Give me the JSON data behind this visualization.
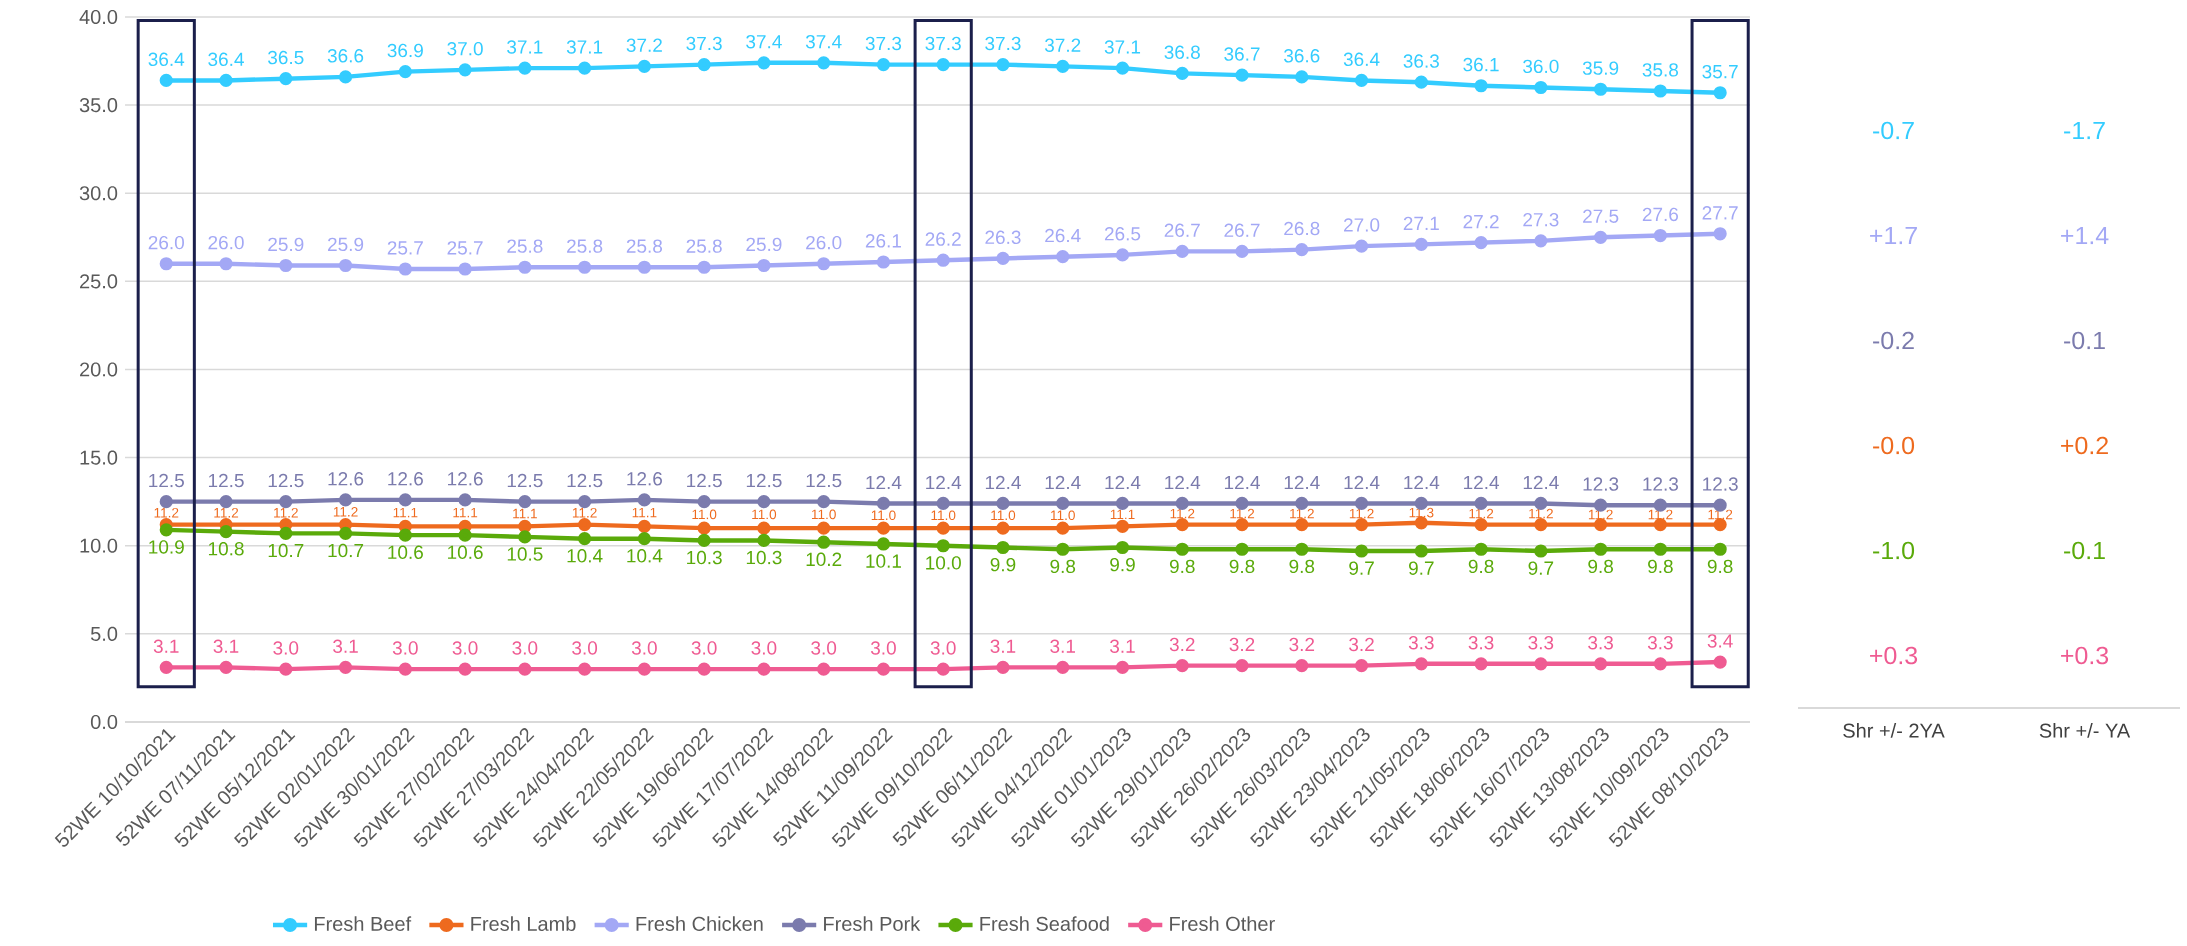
{
  "chart_data": [
    {
      "type": "line",
      "categories": [
        "52WE 10/10/2021",
        "52WE 07/11/2021",
        "52WE 05/12/2021",
        "52WE 02/01/2022",
        "52WE 30/01/2022",
        "52WE 27/02/2022",
        "52WE 27/03/2022",
        "52WE 24/04/2022",
        "52WE 22/05/2022",
        "52WE 19/06/2022",
        "52WE 17/07/2022",
        "52WE 14/08/2022",
        "52WE 11/09/2022",
        "52WE 09/10/2022",
        "52WE 06/11/2022",
        "52WE 04/12/2022",
        "52WE 01/01/2023",
        "52WE 29/01/2023",
        "52WE 26/02/2023",
        "52WE 26/03/2023",
        "52WE 23/04/2023",
        "52WE 21/05/2023",
        "52WE 18/06/2023",
        "52WE 16/07/2023",
        "52WE 13/08/2023",
        "52WE 10/09/2023",
        "52WE 08/10/2023"
      ],
      "series": [
        {
          "name": "Fresh Beef",
          "color": "#33ccff",
          "values": [
            36.4,
            36.4,
            36.5,
            36.6,
            36.9,
            37.0,
            37.1,
            37.1,
            37.2,
            37.3,
            37.4,
            37.4,
            37.3,
            37.3,
            37.3,
            37.2,
            37.1,
            36.8,
            36.7,
            36.6,
            36.4,
            36.3,
            36.1,
            36.0,
            35.9,
            35.8,
            35.7
          ],
          "value_labels": [
            "36.4",
            "36.4",
            "36.5",
            "36.6",
            "36.9",
            "37.0",
            "37.1",
            "37.1",
            "37.2",
            "37.3",
            "37.4",
            "37.4",
            "37.3",
            "37.3",
            "37.3",
            "37.2",
            "37.1",
            "36.8",
            "36.7",
            "36.6",
            "36.4",
            "36.3",
            "36.1",
            "36.0",
            "35.9",
            "35.8",
            "35.7"
          ]
        },
        {
          "name": "Fresh Lamb",
          "color": "#ee6a1e",
          "values": [
            11.2,
            11.2,
            11.2,
            11.2,
            11.1,
            11.1,
            11.1,
            11.2,
            11.1,
            11.0,
            11.0,
            11.0,
            11.0,
            11.0,
            11.0,
            11.0,
            11.1,
            11.2,
            11.2,
            11.2,
            11.2,
            11.3,
            11.2,
            11.2,
            11.2,
            11.2,
            11.2
          ],
          "value_labels": [
            "11.2",
            "11.2",
            "11.2",
            "11.2",
            "11.1",
            "11.1",
            "11.1",
            "11.2",
            "11.1",
            "11.0",
            "11.0",
            "11.0",
            "11.0",
            "11.0",
            "11.0",
            "11.0",
            "11.1",
            "11.2",
            "11.2",
            "11.2",
            "11.2",
            "11.3",
            "11.2",
            "11.2",
            "11.2",
            "11.2",
            "11.2"
          ]
        },
        {
          "name": "Fresh Chicken",
          "color": "#a3a8f5",
          "values": [
            26.0,
            26.0,
            25.9,
            25.9,
            25.7,
            25.7,
            25.8,
            25.8,
            25.8,
            25.8,
            25.9,
            26.0,
            26.1,
            26.2,
            26.3,
            26.4,
            26.5,
            26.7,
            26.7,
            26.8,
            27.0,
            27.1,
            27.2,
            27.3,
            27.5,
            27.6,
            27.7
          ],
          "value_labels": [
            "26.0",
            "26.0",
            "25.9",
            "25.9",
            "25.7",
            "25.7",
            "25.8",
            "25.8",
            "25.8",
            "25.8",
            "25.9",
            "26.0",
            "26.1",
            "26.2",
            "26.3",
            "26.4",
            "26.5",
            "26.7",
            "26.7",
            "26.8",
            "27.0",
            "27.1",
            "27.2",
            "27.3",
            "27.5",
            "27.6",
            "27.7"
          ]
        },
        {
          "name": "Fresh Pork",
          "color": "#7b7bad",
          "values": [
            12.5,
            12.5,
            12.5,
            12.6,
            12.6,
            12.6,
            12.5,
            12.5,
            12.6,
            12.5,
            12.5,
            12.5,
            12.4,
            12.4,
            12.4,
            12.4,
            12.4,
            12.4,
            12.4,
            12.4,
            12.4,
            12.4,
            12.4,
            12.4,
            12.3,
            12.3,
            12.3
          ],
          "value_labels": [
            "12.5",
            "12.5",
            "12.5",
            "12.6",
            "12.6",
            "12.6",
            "12.5",
            "12.5",
            "12.6",
            "12.5",
            "12.5",
            "12.5",
            "12.4",
            "12.4",
            "12.4",
            "12.4",
            "12.4",
            "12.4",
            "12.4",
            "12.4",
            "12.4",
            "12.4",
            "12.4",
            "12.4",
            "12.3",
            "12.3",
            "12.3"
          ]
        },
        {
          "name": "Fresh Seafood",
          "color": "#5aaa0a",
          "values": [
            10.9,
            10.8,
            10.7,
            10.7,
            10.6,
            10.6,
            10.5,
            10.4,
            10.4,
            10.3,
            10.3,
            10.2,
            10.1,
            10.0,
            9.9,
            9.8,
            9.9,
            9.8,
            9.8,
            9.8,
            9.7,
            9.7,
            9.8,
            9.7,
            9.8,
            9.8,
            9.8
          ],
          "value_labels": [
            "10.9",
            "10.8",
            "10.7",
            "10.7",
            "10.6",
            "10.6",
            "10.5",
            "10.4",
            "10.4",
            "10.3",
            "10.3",
            "10.2",
            "10.1",
            "10.0",
            "9.9",
            "9.8",
            "9.9",
            "9.8",
            "9.8",
            "9.8",
            "9.7",
            "9.7",
            "9.8",
            "9.7",
            "9.8",
            "9.8",
            "9.8"
          ]
        },
        {
          "name": "Fresh Other",
          "color": "#ef5b92",
          "values": [
            3.1,
            3.1,
            3.0,
            3.1,
            3.0,
            3.0,
            3.0,
            3.0,
            3.0,
            3.0,
            3.0,
            3.0,
            3.0,
            3.0,
            3.1,
            3.1,
            3.1,
            3.2,
            3.2,
            3.2,
            3.2,
            3.3,
            3.3,
            3.3,
            3.3,
            3.3,
            3.4
          ],
          "value_labels": [
            "3.1",
            "3.1",
            "3.0",
            "3.1",
            "3.0",
            "3.0",
            "3.0",
            "3.0",
            "3.0",
            "3.0",
            "3.0",
            "3.0",
            "3.0",
            "3.0",
            "3.1",
            "3.1",
            "3.1",
            "3.2",
            "3.2",
            "3.2",
            "3.2",
            "3.3",
            "3.3",
            "3.3",
            "3.3",
            "3.3",
            "3.4"
          ]
        }
      ],
      "ylim": [
        0,
        40
      ],
      "yticks": [
        {
          "value": 0,
          "label": "0.0"
        },
        {
          "value": 5,
          "label": "5.0"
        },
        {
          "value": 10,
          "label": "10.0"
        },
        {
          "value": 15,
          "label": "15.0"
        },
        {
          "value": 20,
          "label": "20.0"
        },
        {
          "value": 25,
          "label": "25.0"
        },
        {
          "value": 30,
          "label": "30.0"
        },
        {
          "value": 35,
          "label": "35.0"
        },
        {
          "value": 40,
          "label": "40.0"
        }
      ],
      "grid": "y",
      "legend": "bottom",
      "marker": "circle",
      "line_style": "solid"
    },
    {
      "type": "other",
      "categories": [
        "Shr +/- 2YA",
        "Shr +/- YA"
      ],
      "series": [
        {
          "color": "#33ccff",
          "values": [
            -0.7,
            -1.7
          ],
          "value_labels": [
            "-0.7",
            "-1.7"
          ]
        },
        {
          "color": "#a3a8f5",
          "values": [
            1.7,
            1.4
          ],
          "value_labels": [
            "+1.7",
            "+1.4"
          ]
        },
        {
          "color": "#7b7bad",
          "values": [
            -0.2,
            -0.1
          ],
          "value_labels": [
            "-0.2",
            "-0.1"
          ]
        },
        {
          "color": "#ee6a1e",
          "values": [
            0.0,
            0.2
          ],
          "value_labels": [
            "-0.0",
            "+0.2"
          ]
        },
        {
          "color": "#5aaa0a",
          "values": [
            -1.0,
            -0.1
          ],
          "value_labels": [
            "-1.0",
            "-0.1"
          ]
        },
        {
          "color": "#ef5b92",
          "values": [
            0.3,
            0.3
          ],
          "value_labels": [
            "+0.3",
            "+0.3"
          ]
        }
      ]
    }
  ]
}
